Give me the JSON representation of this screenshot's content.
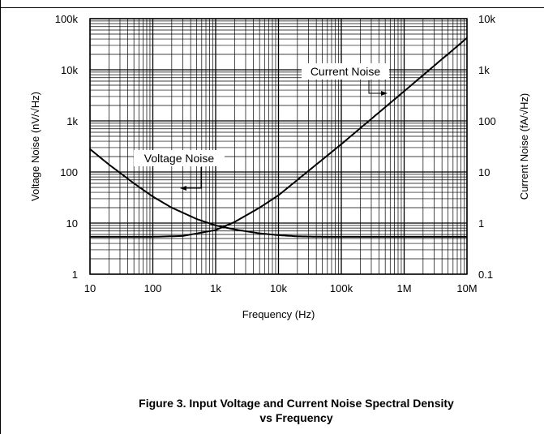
{
  "chart_data": {
    "type": "line",
    "title": "",
    "xlabel": "Frequency (Hz)",
    "ylabel_left": "Voltage Noise (nV/√Hz)",
    "ylabel_right": "Current Noise (fA/√Hz)",
    "x_scale": "log",
    "y_scale": "log",
    "xlim": [
      10,
      10000000
    ],
    "ylim_left": [
      1,
      100000
    ],
    "ylim_right": [
      0.1,
      10000
    ],
    "grid": true,
    "x_ticks": [
      "10",
      "100",
      "1k",
      "10k",
      "100k",
      "1M",
      "10M"
    ],
    "y_left_ticks": [
      "1",
      "10",
      "100",
      "1k",
      "10k",
      "100k"
    ],
    "y_right_ticks": [
      "0.1",
      "1",
      "10",
      "100",
      "1k",
      "10k"
    ],
    "series": [
      {
        "name": "Voltage Noise",
        "axis": "left",
        "x": [
          10,
          20,
          50,
          100,
          200,
          500,
          1000,
          2000,
          5000,
          10000,
          20000,
          50000,
          100000,
          1000000,
          10000000
        ],
        "y": [
          280,
          140,
          60,
          33,
          20,
          12,
          9,
          7.5,
          6.3,
          5.8,
          5.5,
          5.4,
          5.4,
          5.4,
          5.4
        ]
      },
      {
        "name": "Current Noise",
        "axis": "right",
        "x": [
          10,
          100,
          300,
          1000,
          2000,
          5000,
          10000,
          100000,
          1000000,
          10000000
        ],
        "y": [
          0.54,
          0.54,
          0.56,
          0.73,
          1.05,
          2.0,
          3.5,
          35,
          380,
          4200
        ]
      }
    ],
    "annotations": [
      "Voltage Noise",
      "Current Noise"
    ]
  },
  "caption": {
    "line1": "Figure 3. Input Voltage and Current Noise Spectral Density",
    "line2": "vs Frequency"
  }
}
